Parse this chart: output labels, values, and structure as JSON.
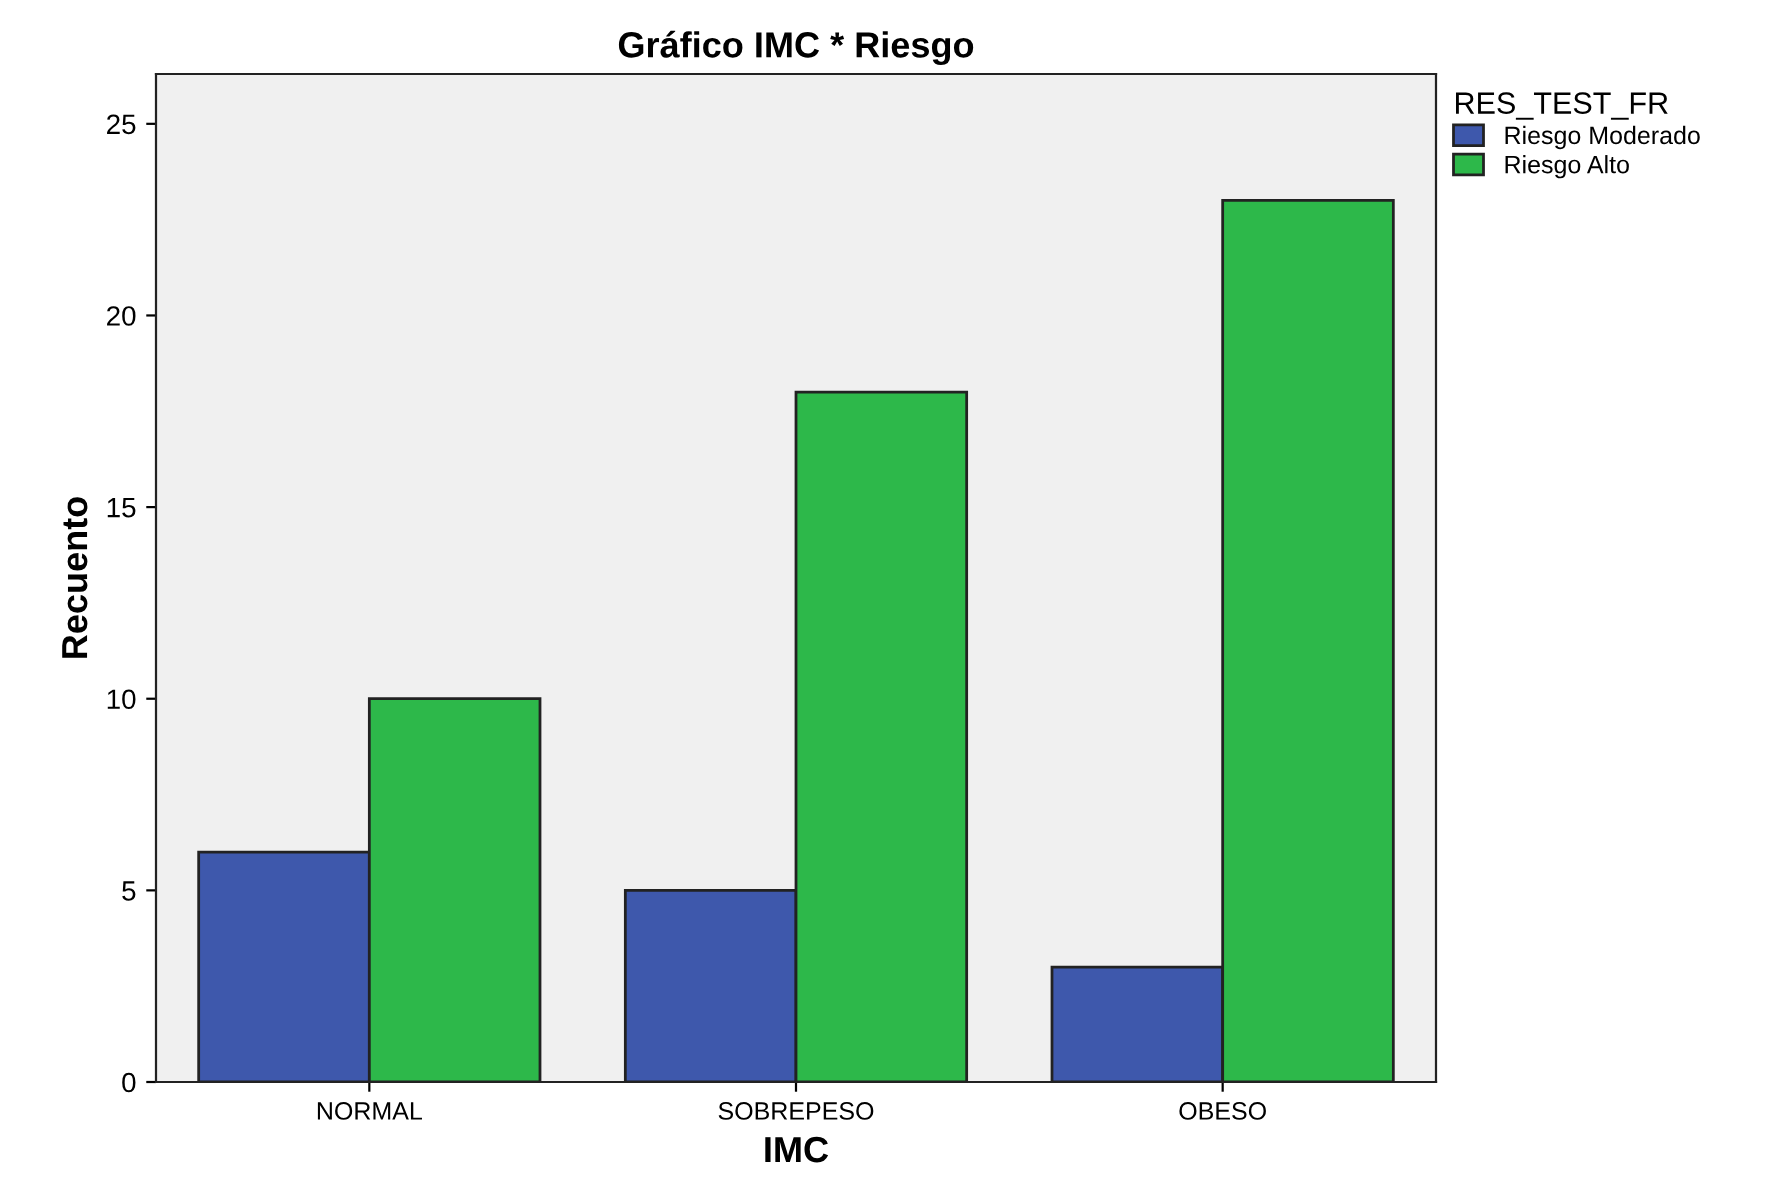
{
  "chart_data": {
    "type": "bar",
    "title": "Gráfico IMC * Riesgo",
    "xlabel": "IMC",
    "ylabel": "Recuento",
    "legend_title": "RES_TEST_FR",
    "categories": [
      "NORMAL",
      "SOBREPESO",
      "OBESO"
    ],
    "series": [
      {
        "name": "Riesgo Moderado",
        "color": "#3e58ac",
        "values": [
          6,
          5,
          3
        ]
      },
      {
        "name": "Riesgo Alto",
        "color": "#2db84a",
        "values": [
          10,
          18,
          23
        ]
      }
    ],
    "ylim": [
      0,
      26.3
    ],
    "yticks": [
      0,
      5,
      10,
      15,
      20,
      25
    ],
    "grid": false,
    "legend": "top right"
  }
}
